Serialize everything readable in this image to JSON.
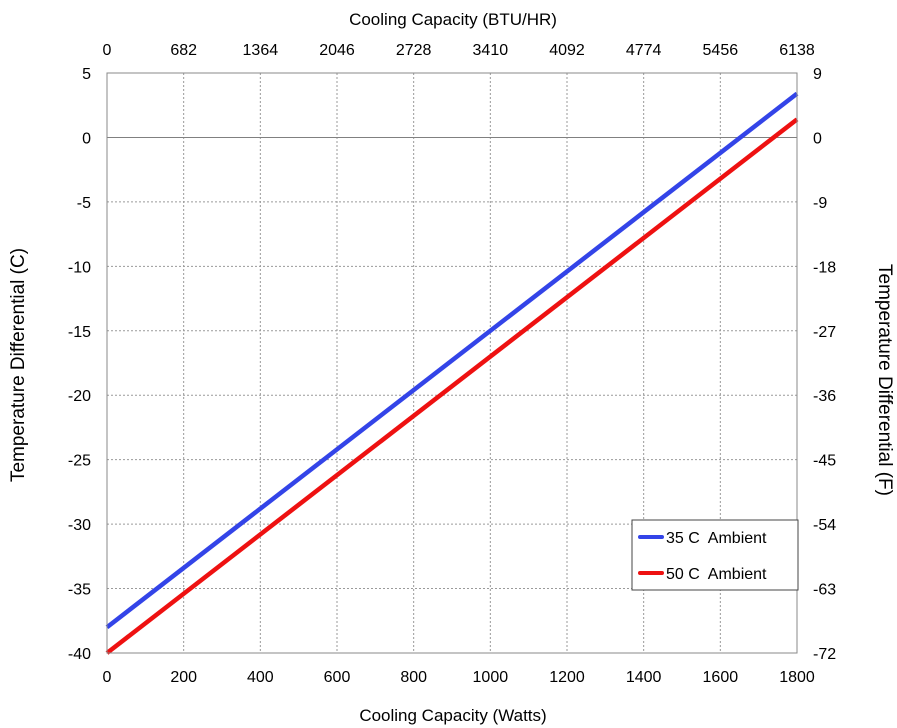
{
  "chart_data": {
    "type": "line",
    "title": "",
    "xlabel": "Cooling Capacity (Watts)",
    "x2label": "Cooling Capacity (BTU/HR)",
    "ylabel": "Temperature Differential (C)",
    "y2label": "Temperature Differential (F)",
    "xlim": [
      0,
      1800
    ],
    "ylim": [
      -40,
      5
    ],
    "y2lim": [
      -72,
      9
    ],
    "grid": true,
    "legend_position": "bottom-right",
    "x_ticks": [
      "0",
      "200",
      "400",
      "600",
      "800",
      "1000",
      "1200",
      "1400",
      "1600",
      "1800"
    ],
    "x2_ticks": [
      "0",
      "682",
      "1364",
      "2046",
      "2728",
      "3410",
      "4092",
      "4774",
      "5456",
      "6138"
    ],
    "y_ticks": [
      "5",
      "0",
      "-5",
      "-10",
      "-15",
      "-20",
      "-25",
      "-30",
      "-35",
      "-40"
    ],
    "y2_ticks": [
      "9",
      "0",
      "-9",
      "-18",
      "-27",
      "-36",
      "-45",
      "-54",
      "-63",
      "-72"
    ],
    "series": [
      {
        "name": "35 C  Ambient",
        "color": "#3344e8",
        "x": [
          0,
          1800
        ],
        "y": [
          -38,
          3.4
        ]
      },
      {
        "name": "50 C  Ambient",
        "color": "#ee1111",
        "x": [
          0,
          1800
        ],
        "y": [
          -40,
          1.4
        ]
      }
    ]
  }
}
